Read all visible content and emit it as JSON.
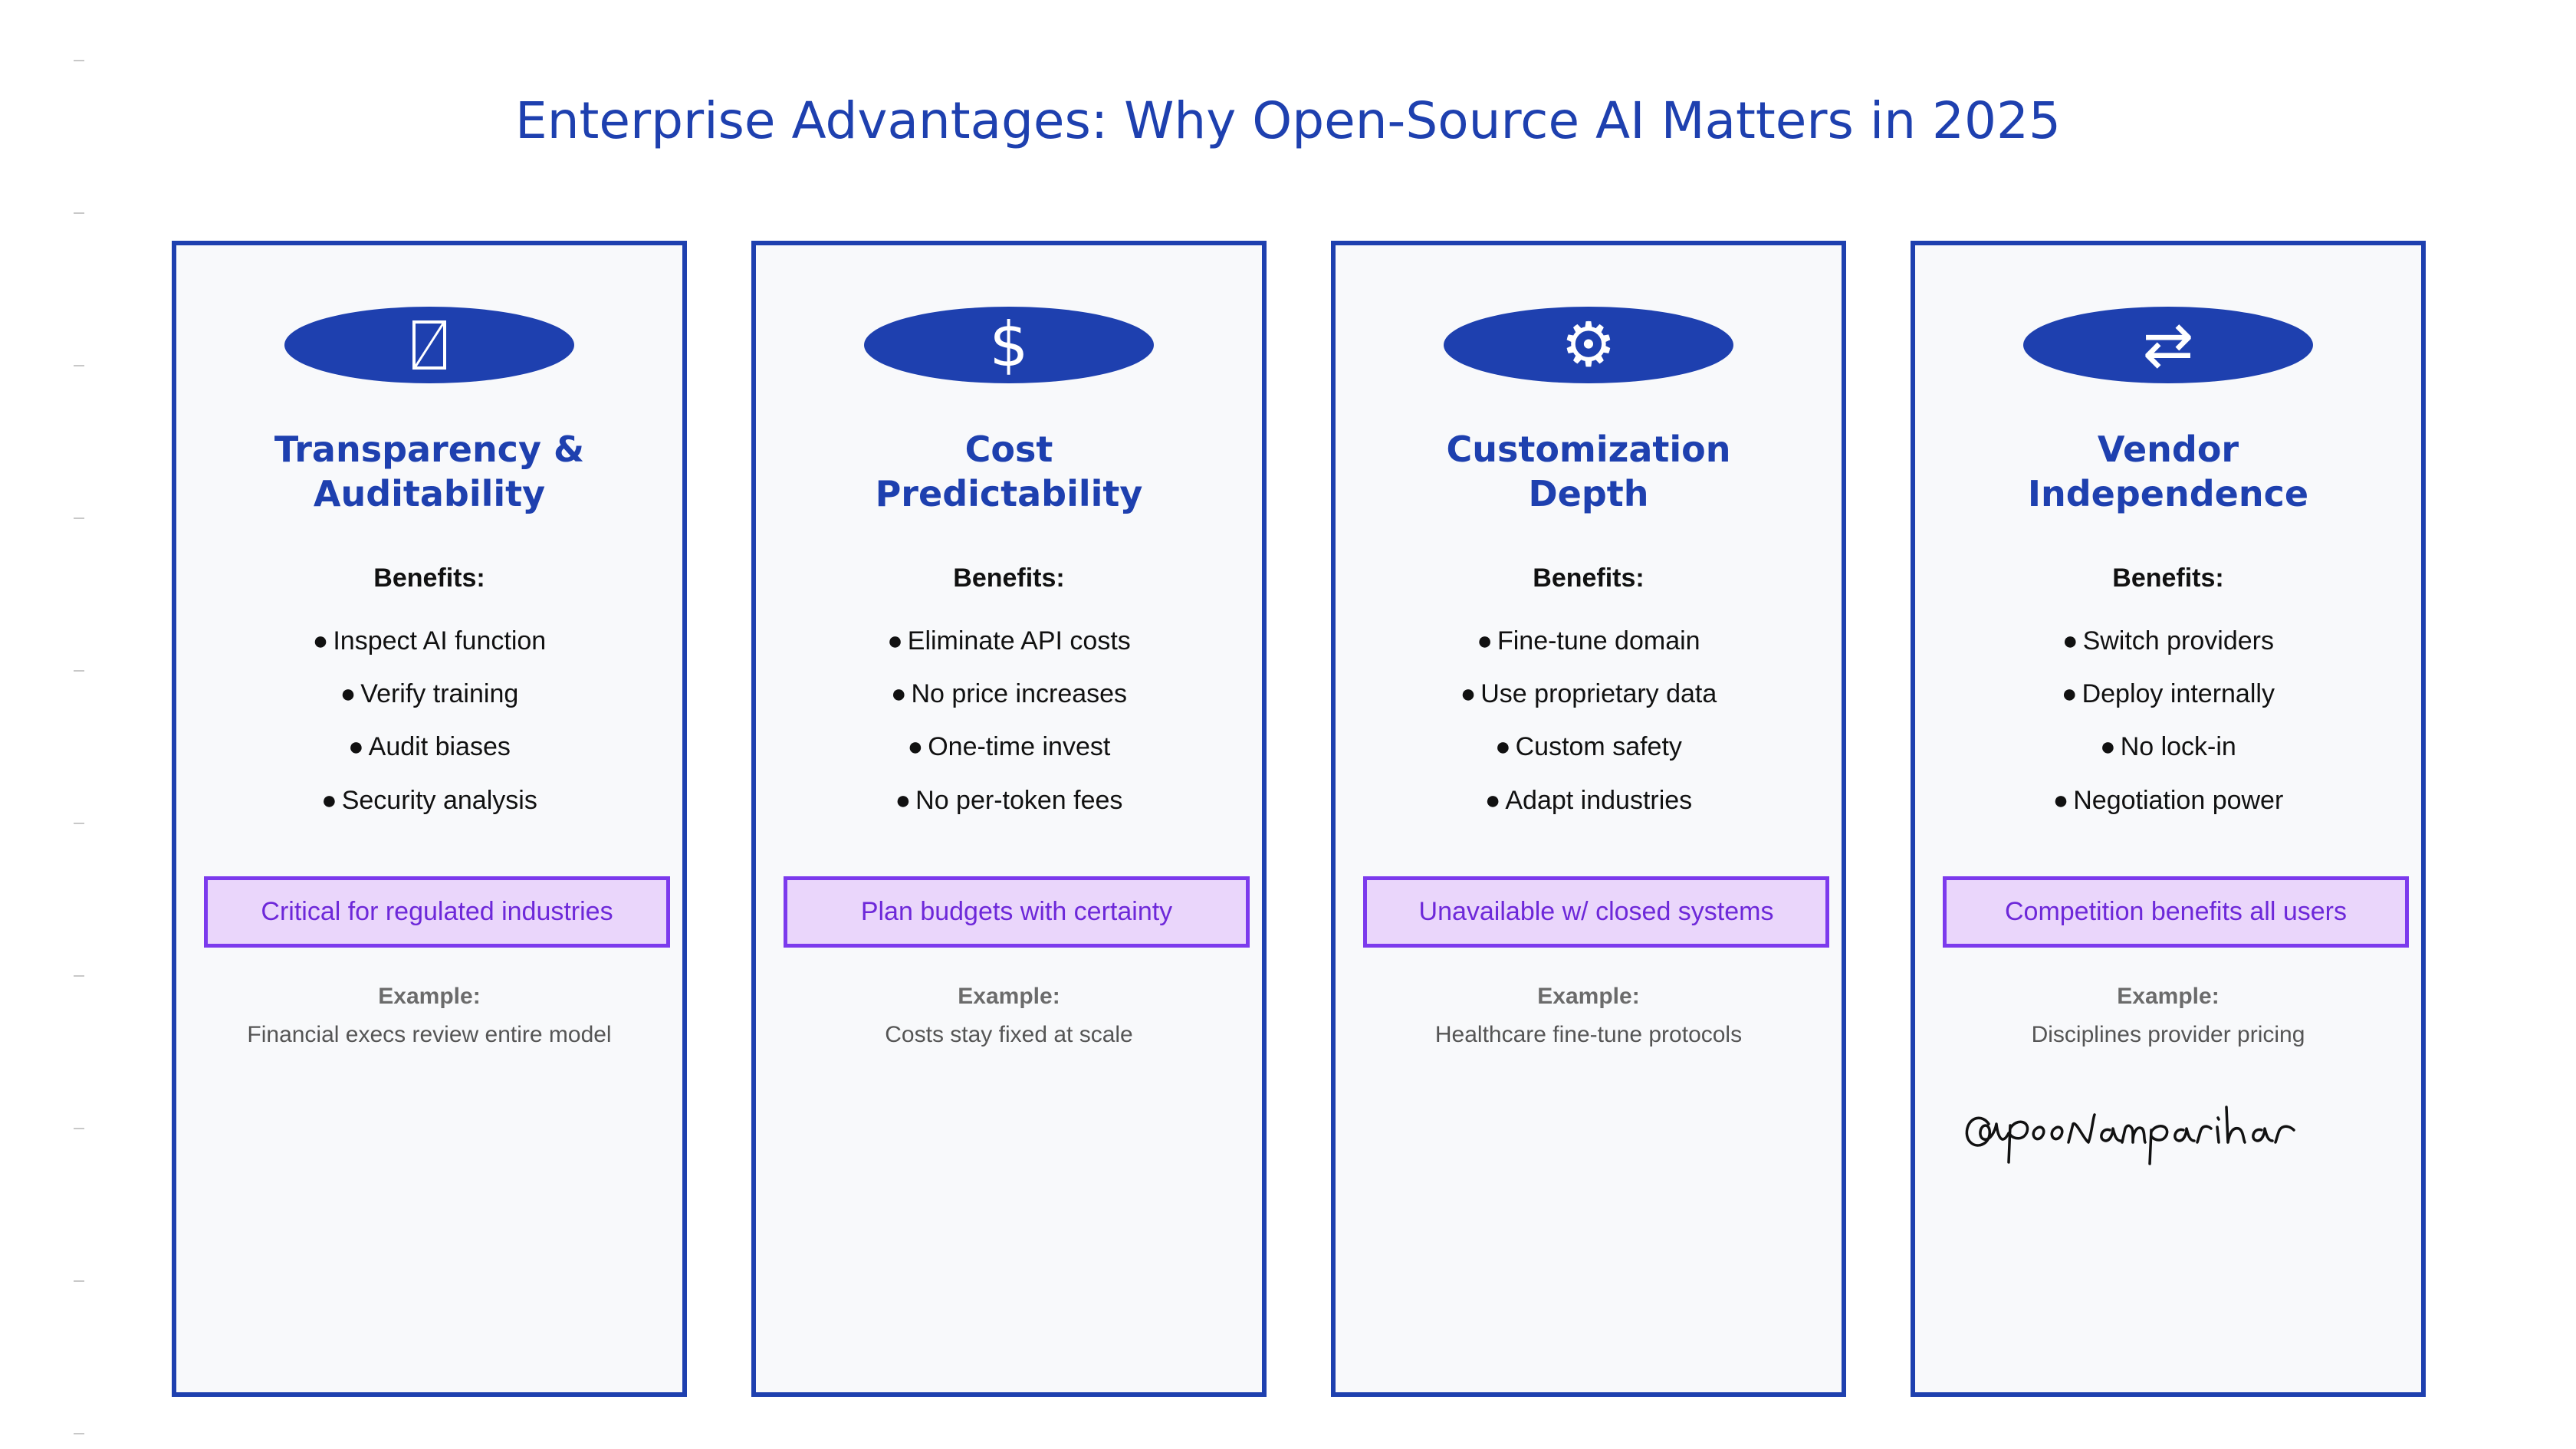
{
  "title": "Enterprise Advantages: Why Open-Source AI Matters in 2025",
  "colors": {
    "primary": "#1e40af",
    "accent": "#7c3aed",
    "highlight_bg": "#ead6fb",
    "card_bg": "#f8f9fb"
  },
  "cards": [
    {
      "icon": "slashed-box-icon",
      "title_line1": "Transparency &",
      "title_line2": "Auditability",
      "benefits_label": "Benefits:",
      "benefits": [
        "Inspect AI function",
        "Verify training",
        "Audit biases",
        "Security analysis"
      ],
      "highlight": "Critical for regulated industries",
      "example_label": "Example:",
      "example": "Financial execs review entire model"
    },
    {
      "icon": "dollar-icon",
      "icon_glyph": "$",
      "title_line1": "Cost",
      "title_line2": "Predictability",
      "benefits_label": "Benefits:",
      "benefits": [
        "Eliminate API costs",
        "No price increases",
        "One-time invest",
        "No per-token fees"
      ],
      "highlight": "Plan budgets with certainty",
      "example_label": "Example:",
      "example": "Costs stay fixed at scale"
    },
    {
      "icon": "gear-icon",
      "icon_glyph": "⚙",
      "title_line1": "Customization",
      "title_line2": "Depth",
      "benefits_label": "Benefits:",
      "benefits": [
        "Fine-tune domain",
        "Use proprietary data",
        "Custom safety",
        "Adapt industries"
      ],
      "highlight": "Unavailable w/ closed systems",
      "example_label": "Example:",
      "example": "Healthcare fine-tune protocols"
    },
    {
      "icon": "swap-arrows-icon",
      "icon_glyph": "⇄",
      "title_line1": "Vendor",
      "title_line2": "Independence",
      "benefits_label": "Benefits:",
      "benefits": [
        "Switch providers",
        "Deploy internally",
        "No lock-in",
        "Negotiation power"
      ],
      "highlight": "Competition benefits all users",
      "example_label": "Example:",
      "example": "Disciplines provider pricing"
    }
  ],
  "signature": "@poonamparihar",
  "bullet": "●"
}
